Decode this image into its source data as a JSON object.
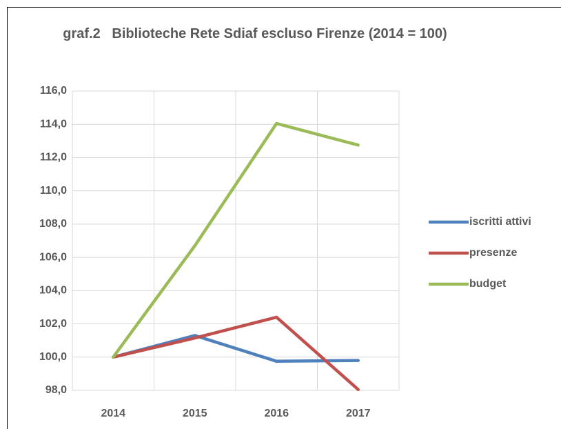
{
  "chart_data": {
    "type": "line",
    "title": "graf.2   Biblioteche Rete Sdiaf escluso Firenze (2014 = 100)",
    "categories": [
      "2014",
      "2015",
      "2016",
      "2017"
    ],
    "series": [
      {
        "name": "iscritti attivi",
        "color": "#4f81bd",
        "values": [
          100,
          101.3,
          99.75,
          99.8
        ]
      },
      {
        "name": "presenze",
        "color": "#c0504d",
        "values": [
          100,
          101.15,
          102.4,
          98.05
        ]
      },
      {
        "name": "budget",
        "color": "#9bbb59",
        "values": [
          100,
          106.7,
          114.05,
          112.75
        ]
      }
    ],
    "ylim": [
      98,
      116
    ],
    "yticks": [
      {
        "value": 98,
        "label": "98,0"
      },
      {
        "value": 100,
        "label": "100,0"
      },
      {
        "value": 102,
        "label": "102,0"
      },
      {
        "value": 104,
        "label": "104,0"
      },
      {
        "value": 106,
        "label": "106,0"
      },
      {
        "value": 108,
        "label": "108,0"
      },
      {
        "value": 110,
        "label": "110,0"
      },
      {
        "value": 112,
        "label": "112,0"
      },
      {
        "value": 114,
        "label": "114,0"
      },
      {
        "value": 116,
        "label": "116,0"
      }
    ],
    "grid": true,
    "legend": "right"
  }
}
